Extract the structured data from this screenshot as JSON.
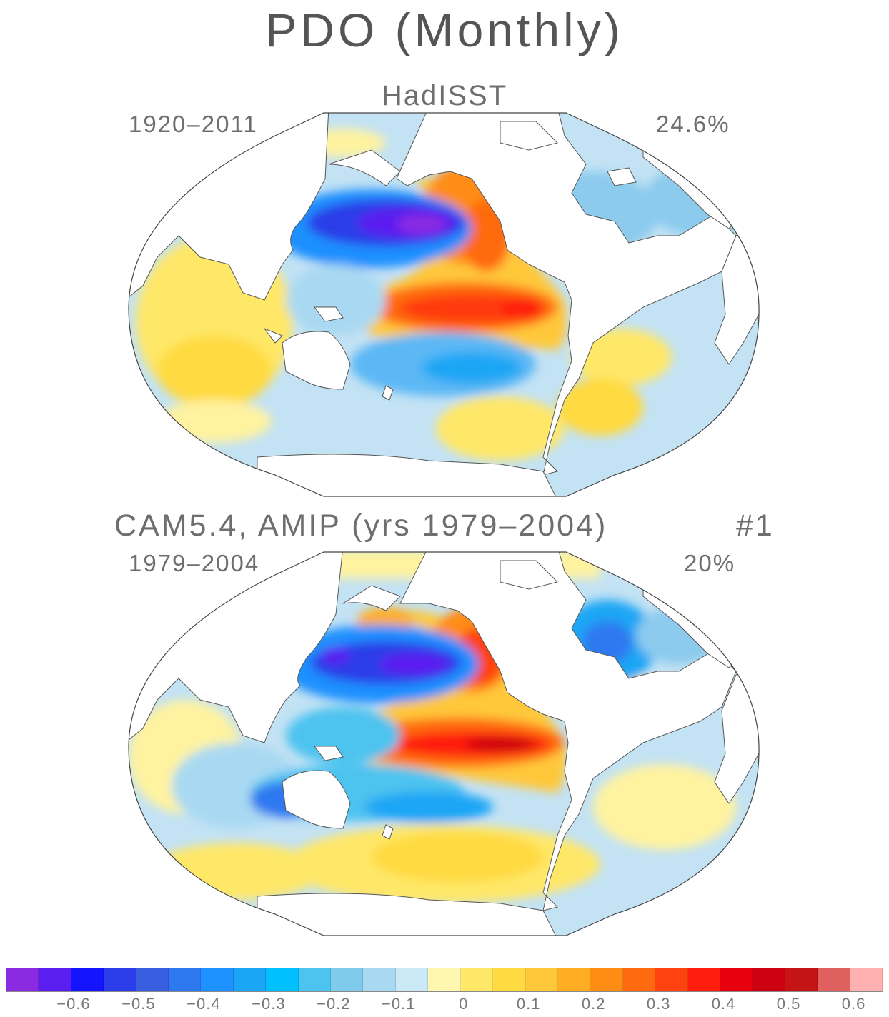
{
  "figure": {
    "title": "PDO (Monthly)",
    "panels": [
      {
        "title": "HadISST",
        "period": "1920–2011",
        "variance": "24.6%"
      },
      {
        "title": "CAM5.4, AMIP (yrs 1979–2004)",
        "member": "#1",
        "period": "1979–2004",
        "variance": "20%"
      }
    ]
  },
  "colorbar": {
    "colors": [
      "#8a2be2",
      "#5a1ef0",
      "#1414ff",
      "#2a3de8",
      "#3a5ee0",
      "#2e78f0",
      "#1e90ff",
      "#1aa6f5",
      "#00c0ff",
      "#4dc3f0",
      "#7ecbec",
      "#a9d9f2",
      "#cbe8f6",
      "#fff7b0",
      "#ffe768",
      "#ffda40",
      "#ffc83a",
      "#ffad22",
      "#ff8c14",
      "#ff6a10",
      "#ff4210",
      "#ff1e0e",
      "#e8000e",
      "#cc0010",
      "#c41414",
      "#e06060",
      "#ffb0b0"
    ],
    "labels": [
      "−0.6",
      "−0.5",
      "−0.4",
      "−0.3",
      "−0.2",
      "−0.1",
      "0",
      "0.1",
      "0.2",
      "0.3",
      "0.4",
      "0.5",
      "0.6"
    ],
    "label_edges": [
      2,
      4,
      6,
      8,
      10,
      12,
      14,
      16,
      18,
      20,
      22,
      24,
      26
    ]
  }
}
